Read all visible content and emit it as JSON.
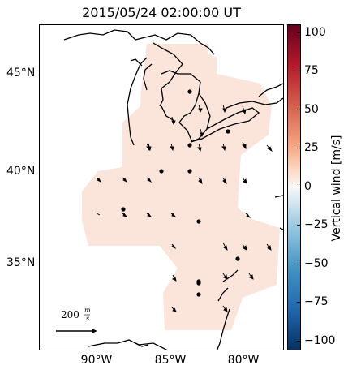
{
  "title": "2015/05/24 02:00:00 UT",
  "latitude_labels": [
    "45°N",
    "40°N",
    "35°N"
  ],
  "longitude_labels": [
    "90°W",
    "85°W",
    "80°W"
  ],
  "colorbar": {
    "label": "Vertical wind [m/s]",
    "ticks": [
      "100",
      "75",
      "50",
      "25",
      "0",
      "−25",
      "−50",
      "−75",
      "−100"
    ],
    "colors": {
      "top": "#67001f",
      "upper": "#d6604d",
      "mid": "#f7f7f7",
      "lower": "#4393c3",
      "bottom": "#053061"
    }
  },
  "field_color": "#fbe4da",
  "reference_arrow": {
    "label": "200",
    "unit_num": "m",
    "unit_den": "s"
  }
}
